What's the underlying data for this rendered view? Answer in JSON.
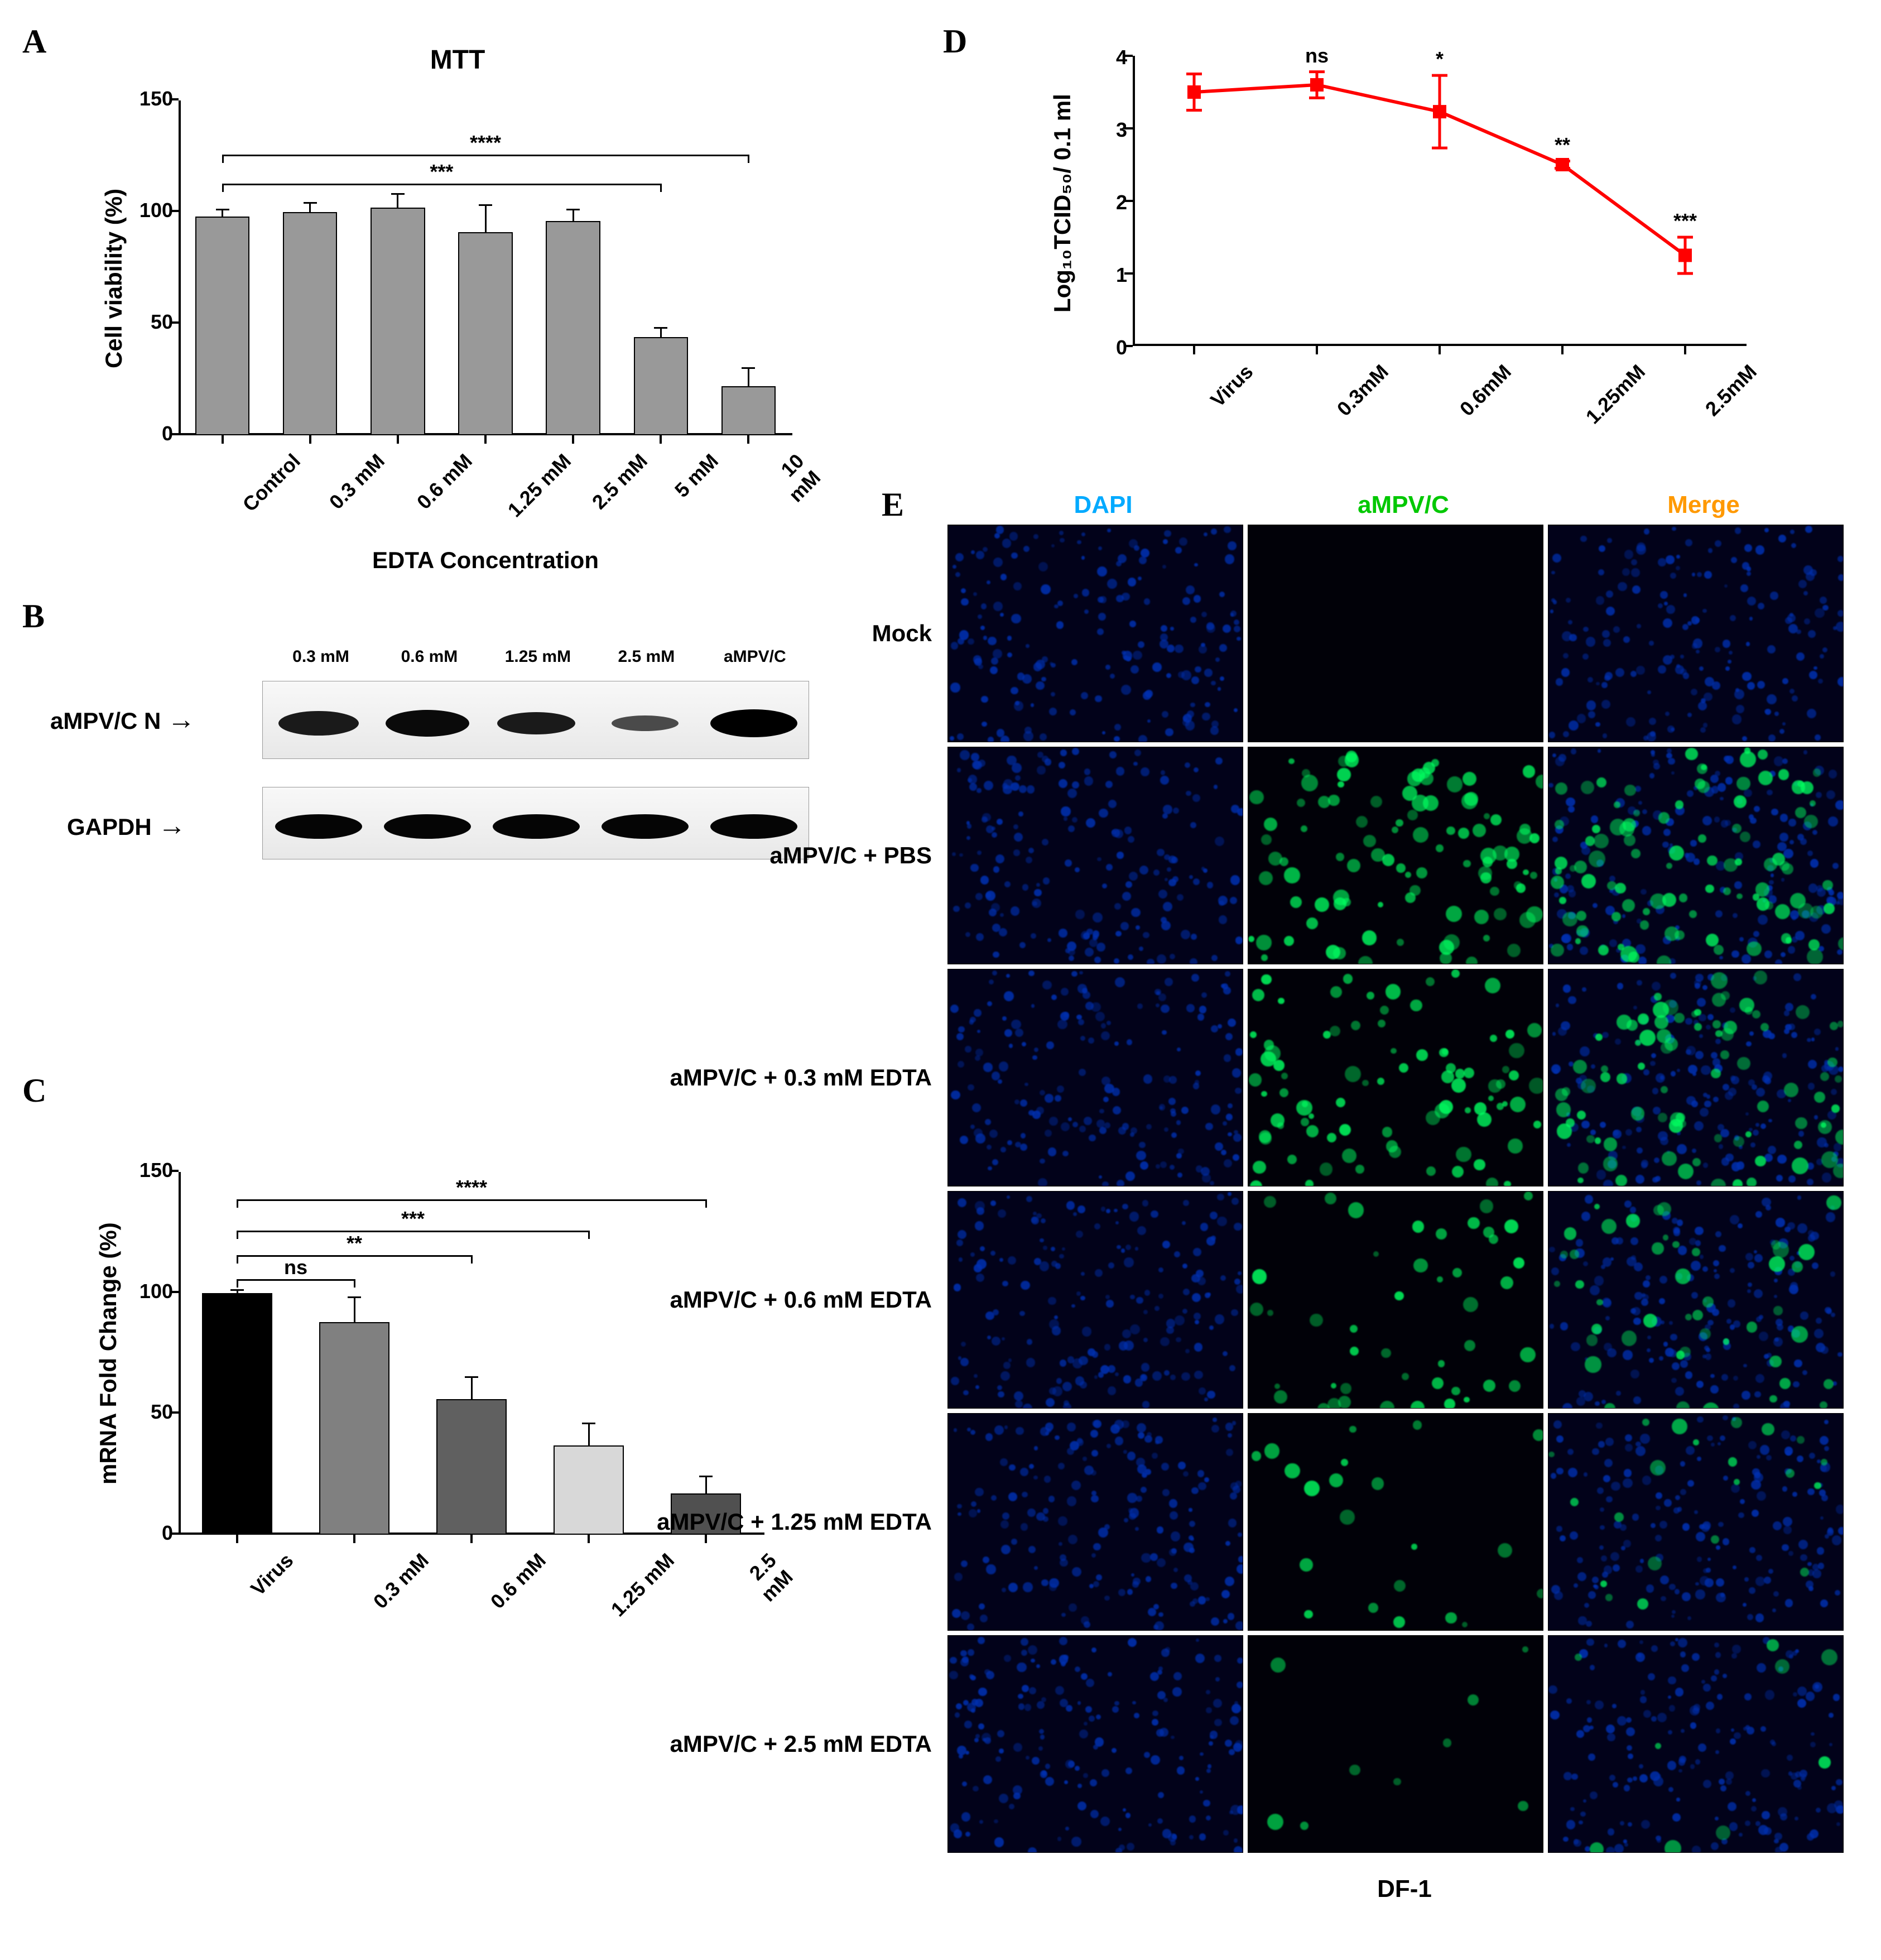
{
  "panelA": {
    "label": "A",
    "title": "MTT",
    "ylabel": "Cell viability (%)",
    "xlabel": "EDTA Concentration",
    "ylim": [
      0,
      150
    ],
    "yticks": [
      0,
      50,
      100,
      150
    ],
    "categories": [
      "Control",
      "0.3 mM",
      "0.6 mM",
      "1.25 mM",
      "2.5 mM",
      "5 mM",
      "10 mM"
    ],
    "values": [
      98,
      100,
      102,
      91,
      96,
      44,
      22
    ],
    "errors": [
      3,
      4,
      6,
      12,
      5,
      4,
      8
    ],
    "bar_color": "#999999",
    "bg": "#ffffff",
    "sig": [
      {
        "from": 0,
        "to": 5,
        "label": "***",
        "y": 112
      },
      {
        "from": 0,
        "to": 6,
        "label": "****",
        "y": 125
      }
    ]
  },
  "panelB": {
    "label": "B",
    "lanes": [
      "0.3 mM",
      "0.6 mM",
      "1.25 mM",
      "2.5 mM",
      "aMPV/C"
    ],
    "rows": [
      {
        "label": "aMPV/C N",
        "arrow": true
      },
      {
        "label": "GAPDH",
        "arrow": true
      }
    ]
  },
  "panelC": {
    "label": "C",
    "ylabel": "mRNA Fold Change (%)",
    "ylim": [
      0,
      150
    ],
    "yticks": [
      0,
      50,
      100,
      150
    ],
    "categories": [
      "Virus",
      "0.3 mM",
      "0.6 mM",
      "1.25 mM",
      "2.5 mM"
    ],
    "values": [
      100,
      88,
      56,
      37,
      17
    ],
    "errors": [
      1,
      10,
      9,
      9,
      7
    ],
    "bar_colors": [
      "#000000",
      "#808080",
      "#606060",
      "#d8d8d8",
      "#505050"
    ],
    "sig": [
      {
        "from": 0,
        "to": 1,
        "label": "ns",
        "y": 105
      },
      {
        "from": 0,
        "to": 2,
        "label": "**",
        "y": 115
      },
      {
        "from": 0,
        "to": 3,
        "label": "***",
        "y": 125
      },
      {
        "from": 0,
        "to": 4,
        "label": "****",
        "y": 138
      }
    ]
  },
  "panelD": {
    "label": "D",
    "ylabel": "Log₁₀TCID₅₀/ 0.1 ml",
    "ylim": [
      0,
      4
    ],
    "yticks": [
      0,
      1,
      2,
      3,
      4
    ],
    "categories": [
      "Virus",
      "0.3mM",
      "0.6mM",
      "1.25mM",
      "2.5mM"
    ],
    "values": [
      3.5,
      3.6,
      3.23,
      2.5,
      1.25
    ],
    "errors": [
      0.25,
      0.18,
      0.5,
      0.05,
      0.25
    ],
    "line_color": "#ff0000",
    "marker_color": "#ff0000",
    "sig_labels": [
      "",
      "ns",
      "*",
      "**",
      "***"
    ]
  },
  "panelE": {
    "label": "E",
    "columns": [
      "DAPI",
      "aMPV/C",
      "Merge"
    ],
    "column_colors": [
      "#00aaff",
      "#00c800",
      "#ff9900"
    ],
    "rows": [
      "Mock",
      "aMPV/C + PBS",
      "aMPV/C + 0.3 mM EDTA",
      "aMPV/C + 0.6 mM EDTA",
      "aMPV/C + 1.25 mM EDTA",
      "aMPV/C + 2.5 mM EDTA"
    ],
    "green_intensity": [
      0.0,
      0.8,
      0.7,
      0.35,
      0.15,
      0.05
    ],
    "footer": "DF-1",
    "dapi_color": "#0030b0",
    "green_color": "#00ff60"
  }
}
